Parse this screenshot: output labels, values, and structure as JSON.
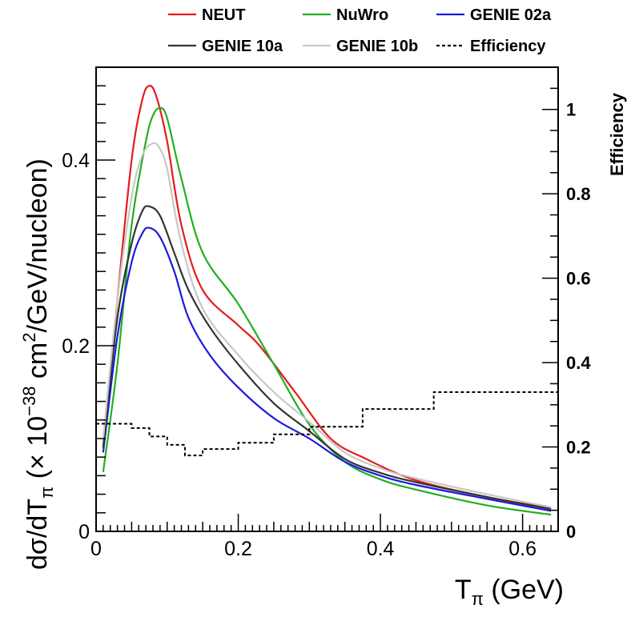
{
  "chart_data": {
    "type": "line",
    "xlabel": "T",
    "xlabel_sub": "π",
    "xlabel_unit": " (GeV)",
    "ylabel": {
      "part1": "dσ/dT",
      "sub1": "π",
      "part2": " (× 10",
      "sup1": "−38",
      "part3": " cm",
      "sup2": "2",
      "part4": "/GeV/nucleon)"
    },
    "y2label": "Efficiency",
    "xlim": [
      0,
      0.65
    ],
    "ylim": [
      0,
      0.5
    ],
    "y2lim": [
      0,
      1.1
    ],
    "x_ticks": [
      0,
      0.2,
      0.4,
      0.6
    ],
    "x_tick_labels": [
      "0",
      "0.2",
      "0.4",
      "0.6"
    ],
    "y_ticks": [
      0,
      0.2,
      0.4
    ],
    "y_tick_labels": [
      "0",
      "0.2",
      "0.4"
    ],
    "y2_ticks": [
      0,
      0.2,
      0.4,
      0.6,
      0.8,
      1
    ],
    "y2_tick_labels": [
      "0",
      "0.2",
      "0.4",
      "0.6",
      "0.8",
      "1"
    ],
    "series": [
      {
        "name": "NEUT",
        "color": "#e41a1c",
        "dash": "solid",
        "x": [
          0.01,
          0.03,
          0.05,
          0.065,
          0.075,
          0.085,
          0.1,
          0.12,
          0.15,
          0.2,
          0.23,
          0.28,
          0.33,
          0.38,
          0.45,
          0.55,
          0.64
        ],
        "y": [
          0.09,
          0.25,
          0.4,
          0.465,
          0.48,
          0.468,
          0.42,
          0.33,
          0.26,
          0.222,
          0.2,
          0.15,
          0.1,
          0.078,
          0.055,
          0.037,
          0.025
        ]
      },
      {
        "name": "NuWro",
        "color": "#20b020",
        "dash": "solid",
        "x": [
          0.01,
          0.03,
          0.05,
          0.07,
          0.08,
          0.09,
          0.1,
          0.12,
          0.15,
          0.2,
          0.25,
          0.3,
          0.35,
          0.4,
          0.45,
          0.55,
          0.64
        ],
        "y": [
          0.064,
          0.18,
          0.33,
          0.42,
          0.448,
          0.456,
          0.445,
          0.38,
          0.3,
          0.245,
          0.18,
          0.115,
          0.075,
          0.056,
          0.045,
          0.028,
          0.018
        ]
      },
      {
        "name": "GENIE 02a",
        "color": "#1a1ae0",
        "dash": "solid",
        "x": [
          0.01,
          0.03,
          0.05,
          0.065,
          0.075,
          0.09,
          0.11,
          0.13,
          0.16,
          0.2,
          0.25,
          0.3,
          0.35,
          0.4,
          0.45,
          0.55,
          0.64
        ],
        "y": [
          0.085,
          0.21,
          0.29,
          0.321,
          0.327,
          0.317,
          0.28,
          0.23,
          0.19,
          0.155,
          0.122,
          0.1,
          0.075,
          0.06,
          0.05,
          0.035,
          0.022
        ]
      },
      {
        "name": "GENIE 10a",
        "color": "#333333",
        "dash": "solid",
        "x": [
          0.01,
          0.03,
          0.05,
          0.065,
          0.075,
          0.09,
          0.11,
          0.13,
          0.16,
          0.2,
          0.25,
          0.3,
          0.35,
          0.4,
          0.45,
          0.55,
          0.64
        ],
        "y": [
          0.09,
          0.23,
          0.31,
          0.345,
          0.35,
          0.34,
          0.3,
          0.26,
          0.22,
          0.18,
          0.138,
          0.108,
          0.078,
          0.063,
          0.053,
          0.037,
          0.024
        ]
      },
      {
        "name": "GENIE 10b",
        "color": "#c8c8c8",
        "dash": "solid",
        "x": [
          0.01,
          0.03,
          0.05,
          0.065,
          0.08,
          0.09,
          0.1,
          0.12,
          0.15,
          0.2,
          0.25,
          0.3,
          0.35,
          0.4,
          0.45,
          0.55,
          0.64
        ],
        "y": [
          0.1,
          0.25,
          0.36,
          0.405,
          0.418,
          0.412,
          0.39,
          0.31,
          0.24,
          0.19,
          0.15,
          0.118,
          0.085,
          0.068,
          0.057,
          0.04,
          0.026
        ]
      },
      {
        "name": "Efficiency",
        "color": "#000000",
        "dash": "dotted",
        "axis": "right",
        "step": true,
        "edges": [
          0.0,
          0.05,
          0.075,
          0.1,
          0.125,
          0.15,
          0.2,
          0.25,
          0.3,
          0.375,
          0.475,
          0.65
        ],
        "values": [
          0.255,
          0.245,
          0.225,
          0.205,
          0.18,
          0.195,
          0.21,
          0.23,
          0.248,
          0.29,
          0.33
        ]
      }
    ],
    "legend": [
      {
        "name": "NEUT",
        "color": "#e41a1c",
        "dash": "solid"
      },
      {
        "name": "NuWro",
        "color": "#20b020",
        "dash": "solid"
      },
      {
        "name": "GENIE 02a",
        "color": "#1a1ae0",
        "dash": "solid"
      },
      {
        "name": "GENIE 10a",
        "color": "#333333",
        "dash": "solid"
      },
      {
        "name": "GENIE 10b",
        "color": "#c8c8c8",
        "dash": "solid"
      },
      {
        "name": "Efficiency",
        "color": "#000000",
        "dash": "dotted"
      }
    ],
    "legend_position": "top",
    "grid": false
  }
}
